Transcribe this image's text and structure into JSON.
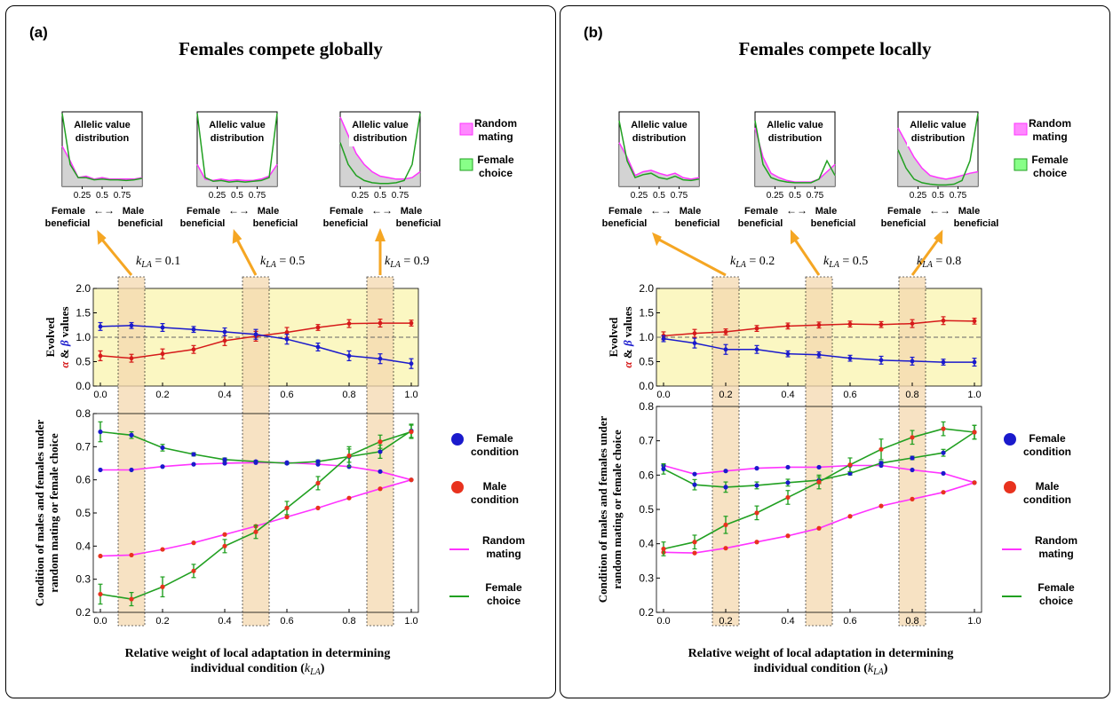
{
  "panels": [
    {
      "label": "(a)",
      "title": "Females compete globally",
      "insets": [
        {
          "title_line1": "Allelic value",
          "title_line2": "distribution",
          "ticks": [
            "0.25",
            "0.5",
            "0.75"
          ],
          "klabel": "= 0.1",
          "rm": [
            0.55,
            0.35,
            0.12,
            0.14,
            0.1,
            0.12,
            0.1,
            0.1,
            0.1,
            0.1,
            0.12
          ],
          "fc": [
            1.0,
            0.3,
            0.12,
            0.12,
            0.09,
            0.1,
            0.09,
            0.09,
            0.08,
            0.09,
            0.11
          ]
        },
        {
          "title_line1": "Allelic value",
          "title_line2": "distribution",
          "ticks": [
            "0.25",
            "0.5",
            "0.75"
          ],
          "klabel": "= 0.5",
          "rm": [
            0.3,
            0.1,
            0.08,
            0.1,
            0.08,
            0.09,
            0.08,
            0.08,
            0.1,
            0.14,
            0.3
          ],
          "fc": [
            1.0,
            0.12,
            0.07,
            0.08,
            0.06,
            0.07,
            0.06,
            0.07,
            0.08,
            0.12,
            1.0
          ]
        },
        {
          "title_line1": "Allelic value",
          "title_line2": "distribution",
          "ticks": [
            "0.25",
            "0.5",
            "0.75"
          ],
          "klabel": "= 0.9",
          "rm": [
            0.95,
            0.7,
            0.45,
            0.3,
            0.2,
            0.14,
            0.12,
            0.1,
            0.1,
            0.12,
            0.2
          ],
          "fc": [
            0.6,
            0.3,
            0.15,
            0.08,
            0.05,
            0.04,
            0.04,
            0.05,
            0.08,
            0.3,
            1.0
          ]
        }
      ],
      "legend_top": {
        "rm_line1": "Random",
        "rm_line2": "mating",
        "fc_line1": "Female",
        "fc_line2": "choice"
      },
      "top_chart": {
        "ylabel_line1": "Evolved",
        "ylabel_alpha": "α",
        "ylabel_amp": " & ",
        "ylabel_beta": "β",
        "ylabel_values": " values",
        "yticks": [
          "0.0",
          "0.5",
          "1.0",
          "1.5",
          "2.0"
        ],
        "xticks": [
          "0.0",
          "0.2",
          "0.4",
          "0.6",
          "0.8",
          "1.0"
        ],
        "ylim": [
          0,
          2
        ],
        "xlim": [
          0,
          1
        ]
      },
      "bottom_chart": {
        "ylabel_line1": "Condition of males and females under",
        "ylabel_line2": "random mating or female choice",
        "yticks": [
          "0.2",
          "0.3",
          "0.4",
          "0.5",
          "0.6",
          "0.7",
          "0.8"
        ],
        "xticks": [
          "0.0",
          "0.2",
          "0.4",
          "0.6",
          "0.8",
          "1.0"
        ],
        "ylim": [
          0.2,
          0.8
        ],
        "xlim": [
          0,
          1
        ]
      },
      "highlights": [
        0.1,
        0.5,
        0.9
      ],
      "xlabel_line1": "Relative weight of local adaptation in determining",
      "xlabel_line2_prefix": "individual condition (",
      "xlabel_line2_suffix": ")",
      "legend_bottom": {
        "female_line1": "Female",
        "female_line2": "condition",
        "male_line1": "Male",
        "male_line2": "condition",
        "rm_line1": "Random",
        "rm_line2": "mating",
        "fc_line1": "Female",
        "fc_line2": "choice"
      }
    },
    {
      "label": "(b)",
      "title": "Females compete locally",
      "insets": [
        {
          "title_line1": "Allelic value",
          "title_line2": "distribution",
          "ticks": [
            "0.25",
            "0.5",
            "0.75"
          ],
          "klabel": "= 0.2",
          "rm": [
            0.6,
            0.4,
            0.15,
            0.2,
            0.22,
            0.18,
            0.15,
            0.18,
            0.12,
            0.1,
            0.12
          ],
          "fc": [
            0.9,
            0.35,
            0.12,
            0.16,
            0.18,
            0.12,
            0.1,
            0.14,
            0.09,
            0.08,
            0.1
          ]
        },
        {
          "title_line1": "Allelic value",
          "title_line2": "distribution",
          "ticks": [
            "0.25",
            "0.5",
            "0.75"
          ],
          "klabel": "= 0.5",
          "rm": [
            0.8,
            0.4,
            0.18,
            0.12,
            0.08,
            0.06,
            0.06,
            0.06,
            0.1,
            0.2,
            0.3
          ],
          "fc": [
            0.9,
            0.3,
            0.12,
            0.08,
            0.06,
            0.05,
            0.05,
            0.05,
            0.1,
            0.35,
            0.15
          ]
        },
        {
          "title_line1": "Allelic value",
          "title_line2": "distribution",
          "ticks": [
            "0.25",
            "0.5",
            "0.75"
          ],
          "klabel": "= 0.8",
          "rm": [
            0.8,
            0.6,
            0.4,
            0.25,
            0.15,
            0.12,
            0.1,
            0.12,
            0.15,
            0.18,
            0.2
          ],
          "fc": [
            0.5,
            0.25,
            0.1,
            0.05,
            0.03,
            0.02,
            0.02,
            0.03,
            0.08,
            0.35,
            1.0
          ]
        }
      ],
      "legend_top": {
        "rm_line1": "Random",
        "rm_line2": "mating",
        "fc_line1": "Female",
        "fc_line2": "choice"
      },
      "top_chart": {
        "ylabel_line1": "Evolved",
        "ylabel_alpha": "α",
        "ylabel_amp": " & ",
        "ylabel_beta": "β",
        "ylabel_values": " values",
        "yticks": [
          "0.0",
          "0.5",
          "1.0",
          "1.5",
          "2.0"
        ],
        "xticks": [
          "0.0",
          "0.2",
          "0.4",
          "0.6",
          "0.8",
          "1.0"
        ],
        "ylim": [
          0,
          2
        ],
        "xlim": [
          0,
          1
        ]
      },
      "bottom_chart": {
        "ylabel_line1": "Condition of males and females under",
        "ylabel_line2": "random mating or female choice",
        "yticks": [
          "0.2",
          "0.3",
          "0.4",
          "0.5",
          "0.6",
          "0.7",
          "0.8"
        ],
        "xticks": [
          "0.0",
          "0.2",
          "0.4",
          "0.6",
          "0.8",
          "1.0"
        ],
        "ylim": [
          0.2,
          0.8
        ],
        "xlim": [
          0,
          1
        ]
      },
      "highlights": [
        0.2,
        0.5,
        0.8
      ],
      "xlabel_line1": "Relative weight of local adaptation in determining",
      "xlabel_line2_prefix": "individual condition (",
      "xlabel_line2_suffix": ")",
      "legend_bottom": {
        "female_line1": "Female",
        "female_line2": "condition",
        "male_line1": "Male",
        "male_line2": "condition",
        "rm_line1": "Random",
        "rm_line2": "mating",
        "fc_line1": "Female",
        "fc_line2": "choice"
      }
    }
  ],
  "inset_axis_left": "Female",
  "inset_axis_left2": "beneficial",
  "inset_axis_right": "Male",
  "inset_axis_right2": "beneficial",
  "k_symbol": "k",
  "k_subscript": "LA",
  "colors": {
    "alpha": "#d61a1a",
    "beta": "#1a1acc",
    "error": "#1a1acc",
    "female": "#1a1acc",
    "male": "#e8321e",
    "random": "#ff33ff",
    "choice": "#21a021",
    "highlight": "#f5d9b0",
    "topbg": "#fbf7c2",
    "arrow": "#f5a623"
  },
  "chart_data": [
    {
      "type": "line",
      "title": "Females compete globally",
      "xlabel": "Relative weight of local adaptation in determining individual condition (k_LA)",
      "ylabel": "Evolved α & β values",
      "x": [
        0,
        0.1,
        0.2,
        0.3,
        0.4,
        0.5,
        0.6,
        0.7,
        0.8,
        0.9,
        1.0
      ],
      "ylim": [
        0,
        2
      ],
      "reference_line": 1.0,
      "series": [
        {
          "name": "α",
          "values": [
            0.62,
            0.57,
            0.66,
            0.75,
            0.93,
            1.02,
            1.1,
            1.2,
            1.28,
            1.29,
            1.29
          ],
          "err": [
            0.1,
            0.08,
            0.1,
            0.08,
            0.1,
            0.1,
            0.1,
            0.06,
            0.08,
            0.08,
            0.06
          ]
        },
        {
          "name": "β",
          "values": [
            1.22,
            1.24,
            1.2,
            1.16,
            1.11,
            1.06,
            0.96,
            0.8,
            0.62,
            0.56,
            0.46
          ],
          "err": [
            0.08,
            0.06,
            0.08,
            0.06,
            0.08,
            0.1,
            0.1,
            0.08,
            0.1,
            0.1,
            0.1
          ]
        }
      ]
    },
    {
      "type": "line",
      "title": "Females compete globally",
      "xlabel": "Relative weight of local adaptation in determining individual condition (k_LA)",
      "ylabel": "Condition of males and females under random mating or female choice",
      "x": [
        0,
        0.1,
        0.2,
        0.3,
        0.4,
        0.5,
        0.6,
        0.7,
        0.8,
        0.9,
        1.0
      ],
      "ylim": [
        0.2,
        0.8
      ],
      "series": [
        {
          "name": "Female condition, Random mating",
          "values": [
            0.63,
            0.63,
            0.64,
            0.647,
            0.65,
            0.652,
            0.652,
            0.647,
            0.64,
            0.625,
            0.6
          ]
        },
        {
          "name": "Female condition, Female choice",
          "values": [
            0.745,
            0.735,
            0.697,
            0.677,
            0.661,
            0.655,
            0.65,
            0.655,
            0.67,
            0.685,
            0.748
          ],
          "err": [
            0.03,
            0.01,
            0.01,
            0.005,
            0.005,
            0.003,
            0.003,
            0.005,
            0.03,
            0.02,
            0.02
          ]
        },
        {
          "name": "Male condition, Random mating",
          "values": [
            0.37,
            0.373,
            0.39,
            0.41,
            0.435,
            0.46,
            0.488,
            0.515,
            0.545,
            0.573,
            0.6
          ]
        },
        {
          "name": "Male condition, Female choice",
          "values": [
            0.255,
            0.24,
            0.277,
            0.325,
            0.4,
            0.443,
            0.515,
            0.59,
            0.673,
            0.715,
            0.745
          ],
          "err": [
            0.03,
            0.02,
            0.03,
            0.02,
            0.02,
            0.02,
            0.02,
            0.02,
            0.02,
            0.02,
            0.02
          ]
        }
      ]
    },
    {
      "type": "line",
      "title": "Females compete locally",
      "xlabel": "Relative weight of local adaptation in determining individual condition (k_LA)",
      "ylabel": "Evolved α & β values",
      "x": [
        0,
        0.1,
        0.2,
        0.3,
        0.4,
        0.5,
        0.6,
        0.7,
        0.8,
        0.9,
        1.0
      ],
      "ylim": [
        0,
        2
      ],
      "reference_line": 1.0,
      "series": [
        {
          "name": "α",
          "values": [
            1.03,
            1.08,
            1.11,
            1.18,
            1.23,
            1.25,
            1.27,
            1.26,
            1.28,
            1.34,
            1.33
          ],
          "err": [
            0.08,
            0.08,
            0.06,
            0.06,
            0.06,
            0.06,
            0.06,
            0.06,
            0.08,
            0.08,
            0.06
          ]
        },
        {
          "name": "β",
          "values": [
            0.97,
            0.88,
            0.75,
            0.75,
            0.66,
            0.64,
            0.57,
            0.53,
            0.51,
            0.49,
            0.49
          ],
          "err": [
            0.06,
            0.1,
            0.1,
            0.08,
            0.06,
            0.06,
            0.06,
            0.08,
            0.08,
            0.06,
            0.08
          ]
        }
      ]
    },
    {
      "type": "line",
      "title": "Females compete locally",
      "xlabel": "Relative weight of local adaptation in determining individual condition (k_LA)",
      "ylabel": "Condition of males and females under random mating or female choice",
      "x": [
        0,
        0.1,
        0.2,
        0.3,
        0.4,
        0.5,
        0.6,
        0.7,
        0.8,
        0.9,
        1.0
      ],
      "ylim": [
        0.2,
        0.8
      ],
      "series": [
        {
          "name": "Female condition, Random mating",
          "values": [
            0.628,
            0.603,
            0.612,
            0.62,
            0.623,
            0.623,
            0.628,
            0.628,
            0.615,
            0.605,
            0.578
          ]
        },
        {
          "name": "Female condition, Female choice",
          "values": [
            0.618,
            0.572,
            0.565,
            0.57,
            0.578,
            0.585,
            0.605,
            0.635,
            0.65,
            0.665,
            0.725
          ],
          "err": [
            0.015,
            0.015,
            0.015,
            0.01,
            0.01,
            0.01,
            0.005,
            0.005,
            0.005,
            0.01,
            0.02
          ]
        },
        {
          "name": "Male condition, Random mating",
          "values": [
            0.375,
            0.373,
            0.387,
            0.405,
            0.423,
            0.445,
            0.48,
            0.51,
            0.53,
            0.55,
            0.578
          ]
        },
        {
          "name": "Male condition, Female choice",
          "values": [
            0.385,
            0.405,
            0.455,
            0.49,
            0.535,
            0.58,
            0.63,
            0.675,
            0.71,
            0.735,
            0.725
          ],
          "err": [
            0.02,
            0.02,
            0.025,
            0.02,
            0.02,
            0.02,
            0.02,
            0.03,
            0.02,
            0.02,
            0.02
          ]
        }
      ]
    }
  ]
}
